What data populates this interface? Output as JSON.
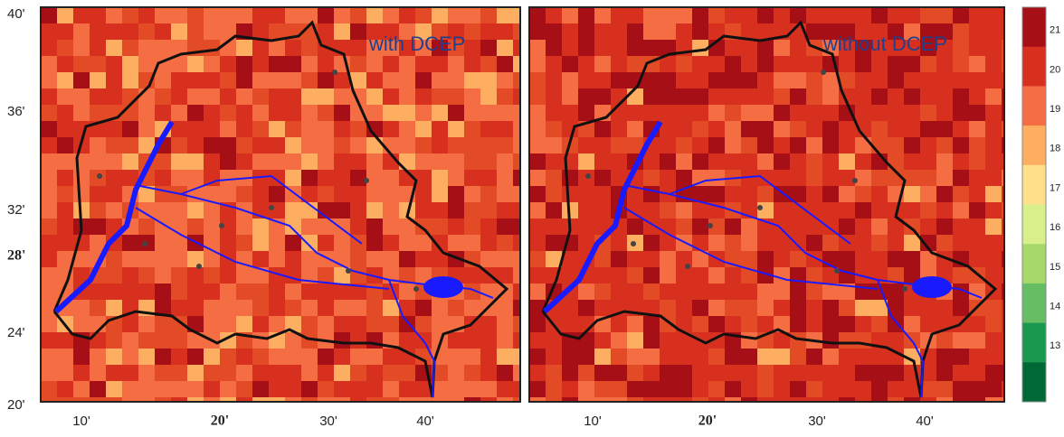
{
  "panels": [
    {
      "title": "with DCEP",
      "x_ticks": [
        "10'",
        "20'",
        "30'",
        "40'"
      ]
    },
    {
      "title": "without DCEP",
      "x_ticks": [
        "10'",
        "20'",
        "30'",
        "40'"
      ]
    }
  ],
  "y_ticks": [
    "40'",
    "36'",
    "32'",
    "28'",
    "24'",
    "20'"
  ],
  "colorbar": {
    "labels": [
      21,
      20,
      19,
      18,
      17,
      16,
      15,
      14,
      13
    ]
  }
}
